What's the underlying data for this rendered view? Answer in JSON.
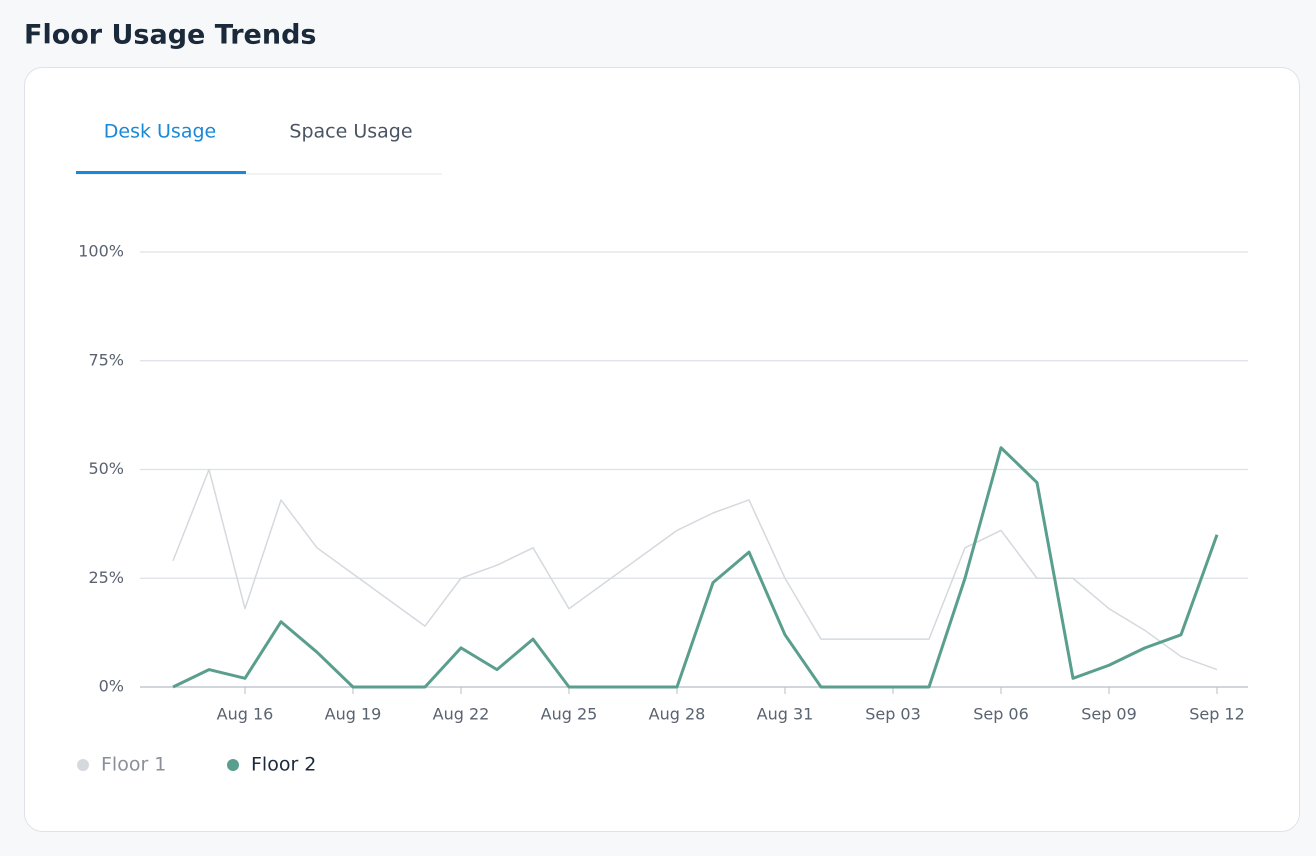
{
  "header": {
    "title": "Floor Usage Trends"
  },
  "tabs": [
    "Desk Usage",
    "Space Usage"
  ],
  "chart_data": {
    "type": "line",
    "categories": [
      null,
      null,
      "Aug 16",
      null,
      null,
      "Aug 19",
      null,
      null,
      "Aug 22",
      null,
      null,
      "Aug 25",
      null,
      null,
      "Aug 28",
      null,
      null,
      "Aug 31",
      null,
      null,
      "Sep 03",
      null,
      null,
      "Sep 06",
      null,
      null,
      "Sep 09",
      null,
      null,
      "Sep 12"
    ],
    "series": [
      {
        "name": "Floor 1",
        "color": "#d5d9de",
        "values": [
          29,
          50,
          18,
          43,
          32,
          26,
          20,
          14,
          25,
          28,
          32,
          18,
          24,
          30,
          36,
          40,
          43,
          25,
          11,
          11,
          11,
          11,
          32,
          36,
          25,
          25,
          18,
          13,
          7,
          4
        ]
      },
      {
        "name": "Floor 2",
        "color": "#5a9e8d",
        "values": [
          0,
          4,
          2,
          15,
          8,
          0,
          0,
          0,
          9,
          4,
          11,
          0,
          0,
          0,
          0,
          24,
          31,
          12,
          0,
          0,
          0,
          0,
          25,
          55,
          47,
          2,
          5,
          9,
          12,
          35
        ]
      }
    ],
    "ylim": [
      0,
      100
    ],
    "yticks": [
      {
        "value": 0,
        "label": "0%"
      },
      {
        "value": 25,
        "label": "25%"
      },
      {
        "value": 50,
        "label": "50%"
      },
      {
        "value": 75,
        "label": "75%"
      },
      {
        "value": 100,
        "label": "100%"
      }
    ],
    "grid": true
  }
}
